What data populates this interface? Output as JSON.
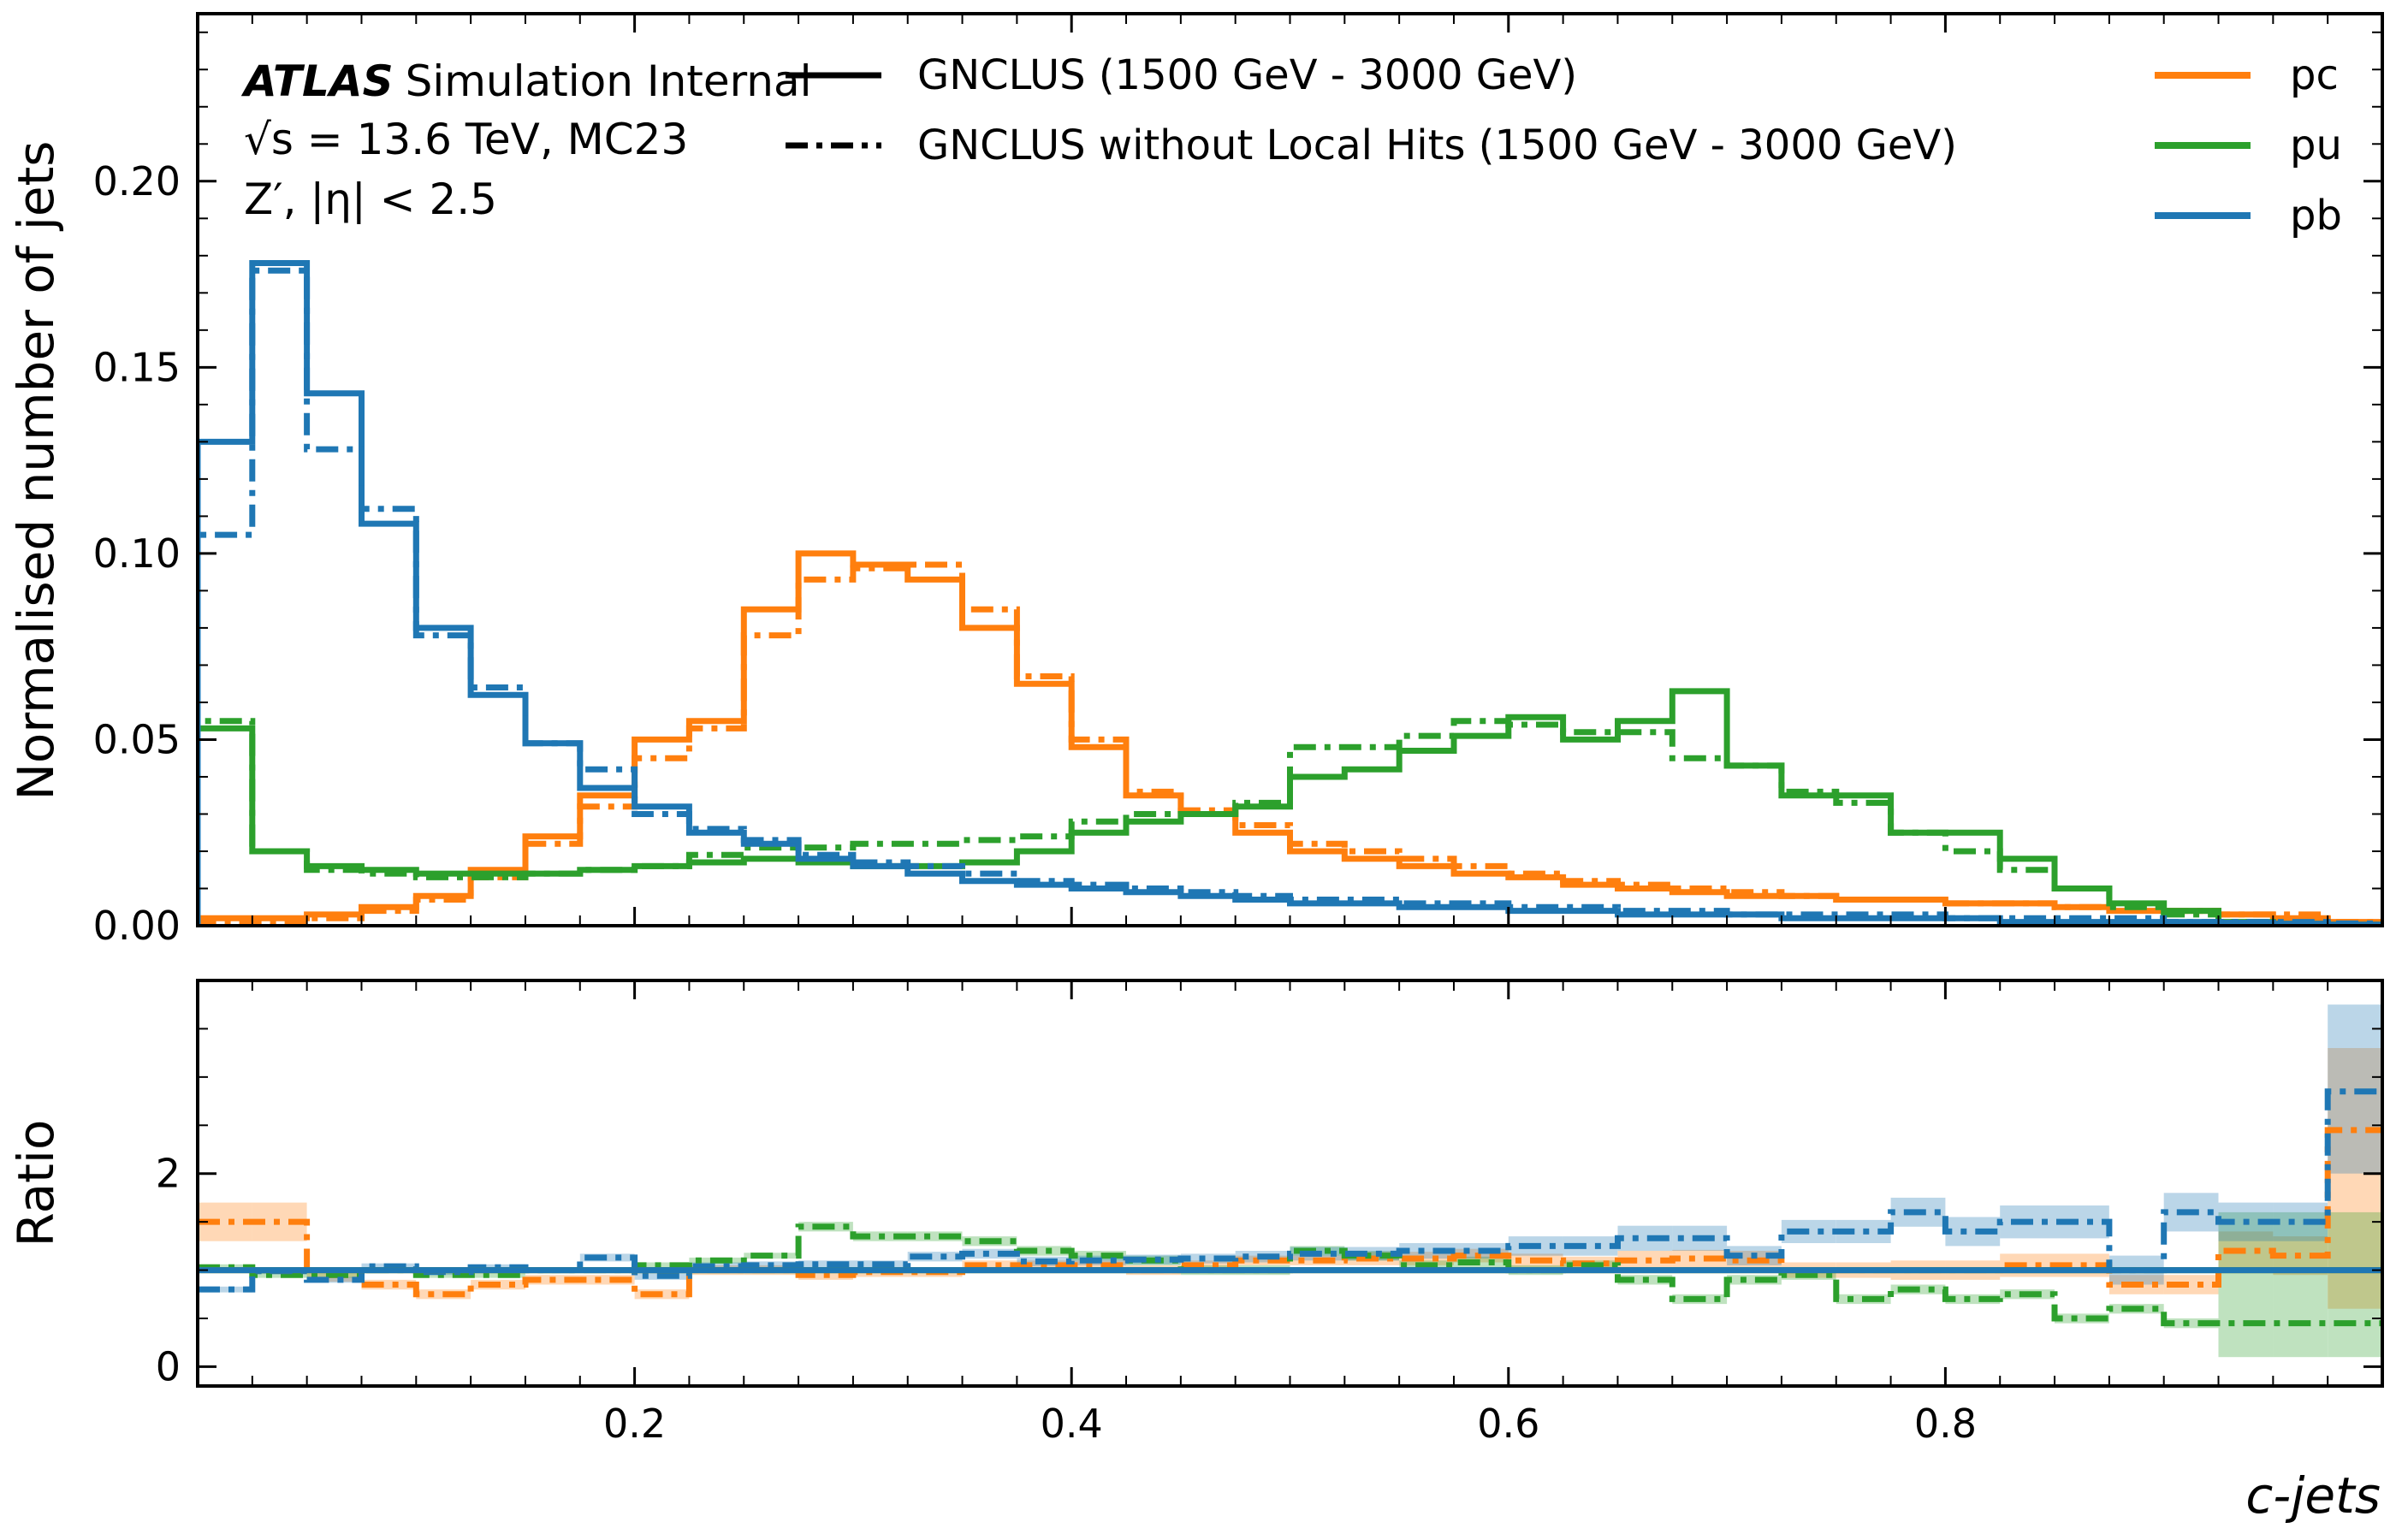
{
  "chart_data": [
    {
      "type": "step-histogram",
      "ylabel": "Normalised number of jets",
      "ylim": [
        0,
        0.245
      ],
      "xlim": [
        0,
        1
      ],
      "yticks": [
        "0.00",
        "0.05",
        "0.10",
        "0.15",
        "0.20"
      ],
      "atlas": {
        "brand": "ATLAS",
        "label": "Simulation Internal",
        "energy_line": "√s = 13.6 TeV, MC23",
        "selection_line": "Z′, |η| < 2.5"
      },
      "style_legend": [
        {
          "label": "GNCLUS (1500 GeV - 3000 GeV)",
          "style": "solid"
        },
        {
          "label": "GNCLUS without Local Hits (1500 GeV - 3000 GeV)",
          "style": "dashdot"
        }
      ],
      "bin_edges": [
        0,
        0.025,
        0.05,
        0.075,
        0.1,
        0.125,
        0.15,
        0.175,
        0.2,
        0.225,
        0.25,
        0.275,
        0.3,
        0.325,
        0.35,
        0.375,
        0.4,
        0.425,
        0.45,
        0.475,
        0.5,
        0.525,
        0.55,
        0.575,
        0.6,
        0.625,
        0.65,
        0.675,
        0.7,
        0.725,
        0.75,
        0.775,
        0.8,
        0.825,
        0.85,
        0.875,
        0.9,
        0.925,
        0.95,
        0.975,
        1.0
      ],
      "series": [
        {
          "name": "pc",
          "color": "#ff7f0e",
          "style": "solid",
          "values": [
            0.002,
            0.002,
            0.003,
            0.005,
            0.008,
            0.015,
            0.024,
            0.035,
            0.05,
            0.055,
            0.085,
            0.1,
            0.097,
            0.093,
            0.08,
            0.065,
            0.048,
            0.035,
            0.03,
            0.025,
            0.02,
            0.018,
            0.016,
            0.014,
            0.013,
            0.011,
            0.01,
            0.009,
            0.008,
            0.008,
            0.007,
            0.007,
            0.006,
            0.006,
            0.005,
            0.004,
            0.004,
            0.003,
            0.002,
            0.001
          ]
        },
        {
          "name": "pc",
          "color": "#ff7f0e",
          "style": "dashdot",
          "values": [
            0.001,
            0.001,
            0.002,
            0.004,
            0.007,
            0.013,
            0.022,
            0.032,
            0.045,
            0.053,
            0.078,
            0.093,
            0.096,
            0.097,
            0.085,
            0.067,
            0.05,
            0.036,
            0.031,
            0.027,
            0.022,
            0.02,
            0.018,
            0.016,
            0.014,
            0.012,
            0.011,
            0.01,
            0.009,
            0.008,
            0.007,
            0.007,
            0.006,
            0.006,
            0.005,
            0.005,
            0.004,
            0.003,
            0.003,
            0.001
          ]
        },
        {
          "name": "pu",
          "color": "#2ca02c",
          "style": "solid",
          "values": [
            0.053,
            0.02,
            0.016,
            0.015,
            0.014,
            0.014,
            0.014,
            0.015,
            0.016,
            0.017,
            0.018,
            0.017,
            0.016,
            0.016,
            0.017,
            0.02,
            0.025,
            0.028,
            0.03,
            0.032,
            0.04,
            0.042,
            0.047,
            0.051,
            0.056,
            0.05,
            0.055,
            0.063,
            0.043,
            0.035,
            0.035,
            0.025,
            0.025,
            0.018,
            0.01,
            0.006,
            0.004,
            0.001,
            0.0005,
            0.0003
          ]
        },
        {
          "name": "pu",
          "color": "#2ca02c",
          "style": "dashdot",
          "values": [
            0.055,
            0.02,
            0.015,
            0.014,
            0.013,
            0.013,
            0.014,
            0.015,
            0.016,
            0.019,
            0.021,
            0.021,
            0.022,
            0.022,
            0.023,
            0.024,
            0.028,
            0.03,
            0.03,
            0.033,
            0.048,
            0.048,
            0.051,
            0.055,
            0.054,
            0.052,
            0.052,
            0.045,
            0.043,
            0.036,
            0.033,
            0.025,
            0.02,
            0.015,
            0.01,
            0.005,
            0.003,
            0.001,
            0.0004,
            0.0002
          ]
        },
        {
          "name": "pb",
          "color": "#1f77b4",
          "style": "solid",
          "values": [
            0.13,
            0.178,
            0.143,
            0.108,
            0.08,
            0.062,
            0.049,
            0.037,
            0.032,
            0.025,
            0.022,
            0.018,
            0.016,
            0.014,
            0.012,
            0.011,
            0.01,
            0.009,
            0.008,
            0.007,
            0.006,
            0.006,
            0.005,
            0.005,
            0.004,
            0.004,
            0.003,
            0.003,
            0.003,
            0.002,
            0.002,
            0.002,
            0.002,
            0.001,
            0.001,
            0.001,
            0.001,
            0.0008,
            0.0005,
            0.0003
          ]
        },
        {
          "name": "pb",
          "color": "#1f77b4",
          "style": "dashdot",
          "values": [
            0.105,
            0.176,
            0.128,
            0.112,
            0.078,
            0.064,
            0.049,
            0.042,
            0.03,
            0.026,
            0.023,
            0.019,
            0.017,
            0.016,
            0.014,
            0.012,
            0.011,
            0.01,
            0.009,
            0.008,
            0.007,
            0.007,
            0.006,
            0.006,
            0.005,
            0.005,
            0.004,
            0.004,
            0.003,
            0.003,
            0.003,
            0.003,
            0.002,
            0.002,
            0.002,
            0.002,
            0.001,
            0.001,
            0.001,
            0.0006
          ]
        }
      ],
      "color_legend": [
        {
          "label": "pc",
          "color": "#ff7f0e"
        },
        {
          "label": "pu",
          "color": "#2ca02c"
        },
        {
          "label": "pb",
          "color": "#1f77b4"
        }
      ]
    },
    {
      "type": "step-ratio",
      "ylabel": "Ratio",
      "xlabel": "c-jets",
      "ylim": [
        -0.2,
        4.0
      ],
      "xlim": [
        0,
        1
      ],
      "xticks": [
        "0.2",
        "0.4",
        "0.6",
        "0.8"
      ],
      "yticks": [
        "0",
        "2"
      ],
      "reference": 1.0,
      "series": [
        {
          "name": "pc",
          "color": "#ff7f0e",
          "values": [
            1.5,
            1.5,
            0.95,
            0.85,
            0.75,
            0.85,
            0.9,
            0.9,
            0.75,
            1.0,
            1.0,
            0.95,
            0.98,
            0.98,
            1.05,
            1.05,
            1.05,
            1.0,
            1.05,
            1.1,
            1.1,
            1.12,
            1.12,
            1.15,
            1.1,
            1.07,
            1.1,
            1.12,
            1.1,
            1.0,
            1.0,
            1.0,
            1.0,
            1.05,
            1.05,
            0.85,
            0.85,
            1.2,
            1.15,
            2.45
          ],
          "band_lo": [
            1.3,
            1.3,
            0.88,
            0.8,
            0.7,
            0.8,
            0.85,
            0.85,
            0.7,
            0.95,
            0.95,
            0.9,
            0.93,
            0.93,
            1.0,
            1.0,
            1.0,
            0.95,
            1.0,
            1.05,
            1.05,
            1.05,
            1.05,
            1.08,
            1.03,
            1.0,
            1.0,
            1.03,
            1.0,
            0.92,
            0.92,
            0.9,
            0.9,
            0.93,
            0.93,
            0.75,
            0.75,
            1.0,
            0.95,
            0.6
          ],
          "band_hi": [
            1.7,
            1.7,
            1.02,
            0.9,
            0.8,
            0.9,
            0.95,
            0.95,
            0.8,
            1.05,
            1.05,
            1.0,
            1.03,
            1.03,
            1.1,
            1.1,
            1.1,
            1.05,
            1.1,
            1.15,
            1.15,
            1.19,
            1.19,
            1.22,
            1.17,
            1.14,
            1.2,
            1.21,
            1.2,
            1.08,
            1.08,
            1.1,
            1.1,
            1.17,
            1.17,
            0.95,
            0.95,
            1.4,
            1.35,
            3.3
          ]
        },
        {
          "name": "pu",
          "color": "#2ca02c",
          "values": [
            1.03,
            0.95,
            0.95,
            1.0,
            0.95,
            0.95,
            1.0,
            1.0,
            1.05,
            1.1,
            1.15,
            1.45,
            1.35,
            1.35,
            1.3,
            1.2,
            1.15,
            1.1,
            1.0,
            1.0,
            1.2,
            1.15,
            1.05,
            1.08,
            1.0,
            1.05,
            0.9,
            0.7,
            0.9,
            0.95,
            0.7,
            0.8,
            0.7,
            0.75,
            0.5,
            0.6,
            0.45,
            0.45,
            0.45,
            0.45
          ],
          "band_lo": [
            1.0,
            0.92,
            0.92,
            0.97,
            0.92,
            0.92,
            0.97,
            0.97,
            1.02,
            1.07,
            1.12,
            1.4,
            1.3,
            1.3,
            1.25,
            1.15,
            1.1,
            1.05,
            0.95,
            0.95,
            1.15,
            1.1,
            1.0,
            1.02,
            0.95,
            1.0,
            0.85,
            0.65,
            0.85,
            0.9,
            0.65,
            0.75,
            0.65,
            0.7,
            0.45,
            0.55,
            0.4,
            0.1,
            0.1,
            0.1
          ],
          "band_hi": [
            1.06,
            0.98,
            0.98,
            1.03,
            0.98,
            0.98,
            1.03,
            1.03,
            1.08,
            1.13,
            1.18,
            1.5,
            1.4,
            1.4,
            1.35,
            1.25,
            1.2,
            1.15,
            1.05,
            1.05,
            1.25,
            1.2,
            1.1,
            1.14,
            1.05,
            1.1,
            0.95,
            0.75,
            0.95,
            1.0,
            0.75,
            0.85,
            0.75,
            0.8,
            0.55,
            0.65,
            0.5,
            1.6,
            1.6,
            1.6
          ]
        },
        {
          "name": "pb",
          "color": "#1f77b4",
          "values": [
            0.8,
            0.99,
            0.9,
            1.04,
            0.98,
            1.03,
            1.0,
            1.13,
            0.94,
            1.04,
            1.05,
            1.06,
            1.06,
            1.14,
            1.17,
            1.09,
            1.1,
            1.11,
            1.12,
            1.14,
            1.17,
            1.17,
            1.2,
            1.2,
            1.25,
            1.25,
            1.33,
            1.33,
            1.15,
            1.4,
            1.4,
            1.6,
            1.4,
            1.5,
            1.5,
            1.0,
            1.6,
            1.5,
            1.5,
            2.85
          ],
          "band_lo": [
            0.77,
            0.96,
            0.87,
            1.01,
            0.95,
            1.0,
            0.97,
            1.09,
            0.9,
            1.0,
            1.01,
            1.02,
            1.02,
            1.09,
            1.12,
            1.04,
            1.05,
            1.06,
            1.07,
            1.08,
            1.1,
            1.1,
            1.12,
            1.12,
            1.15,
            1.15,
            1.2,
            1.2,
            1.05,
            1.28,
            1.28,
            1.45,
            1.25,
            1.33,
            1.33,
            0.85,
            1.4,
            1.3,
            1.3,
            2.0
          ],
          "band_hi": [
            0.83,
            1.02,
            0.93,
            1.07,
            1.01,
            1.06,
            1.03,
            1.17,
            0.98,
            1.08,
            1.09,
            1.1,
            1.1,
            1.19,
            1.22,
            1.14,
            1.15,
            1.16,
            1.17,
            1.2,
            1.24,
            1.24,
            1.28,
            1.28,
            1.35,
            1.35,
            1.46,
            1.46,
            1.25,
            1.52,
            1.52,
            1.75,
            1.55,
            1.67,
            1.67,
            1.15,
            1.8,
            1.7,
            1.7,
            3.75
          ]
        }
      ]
    }
  ]
}
